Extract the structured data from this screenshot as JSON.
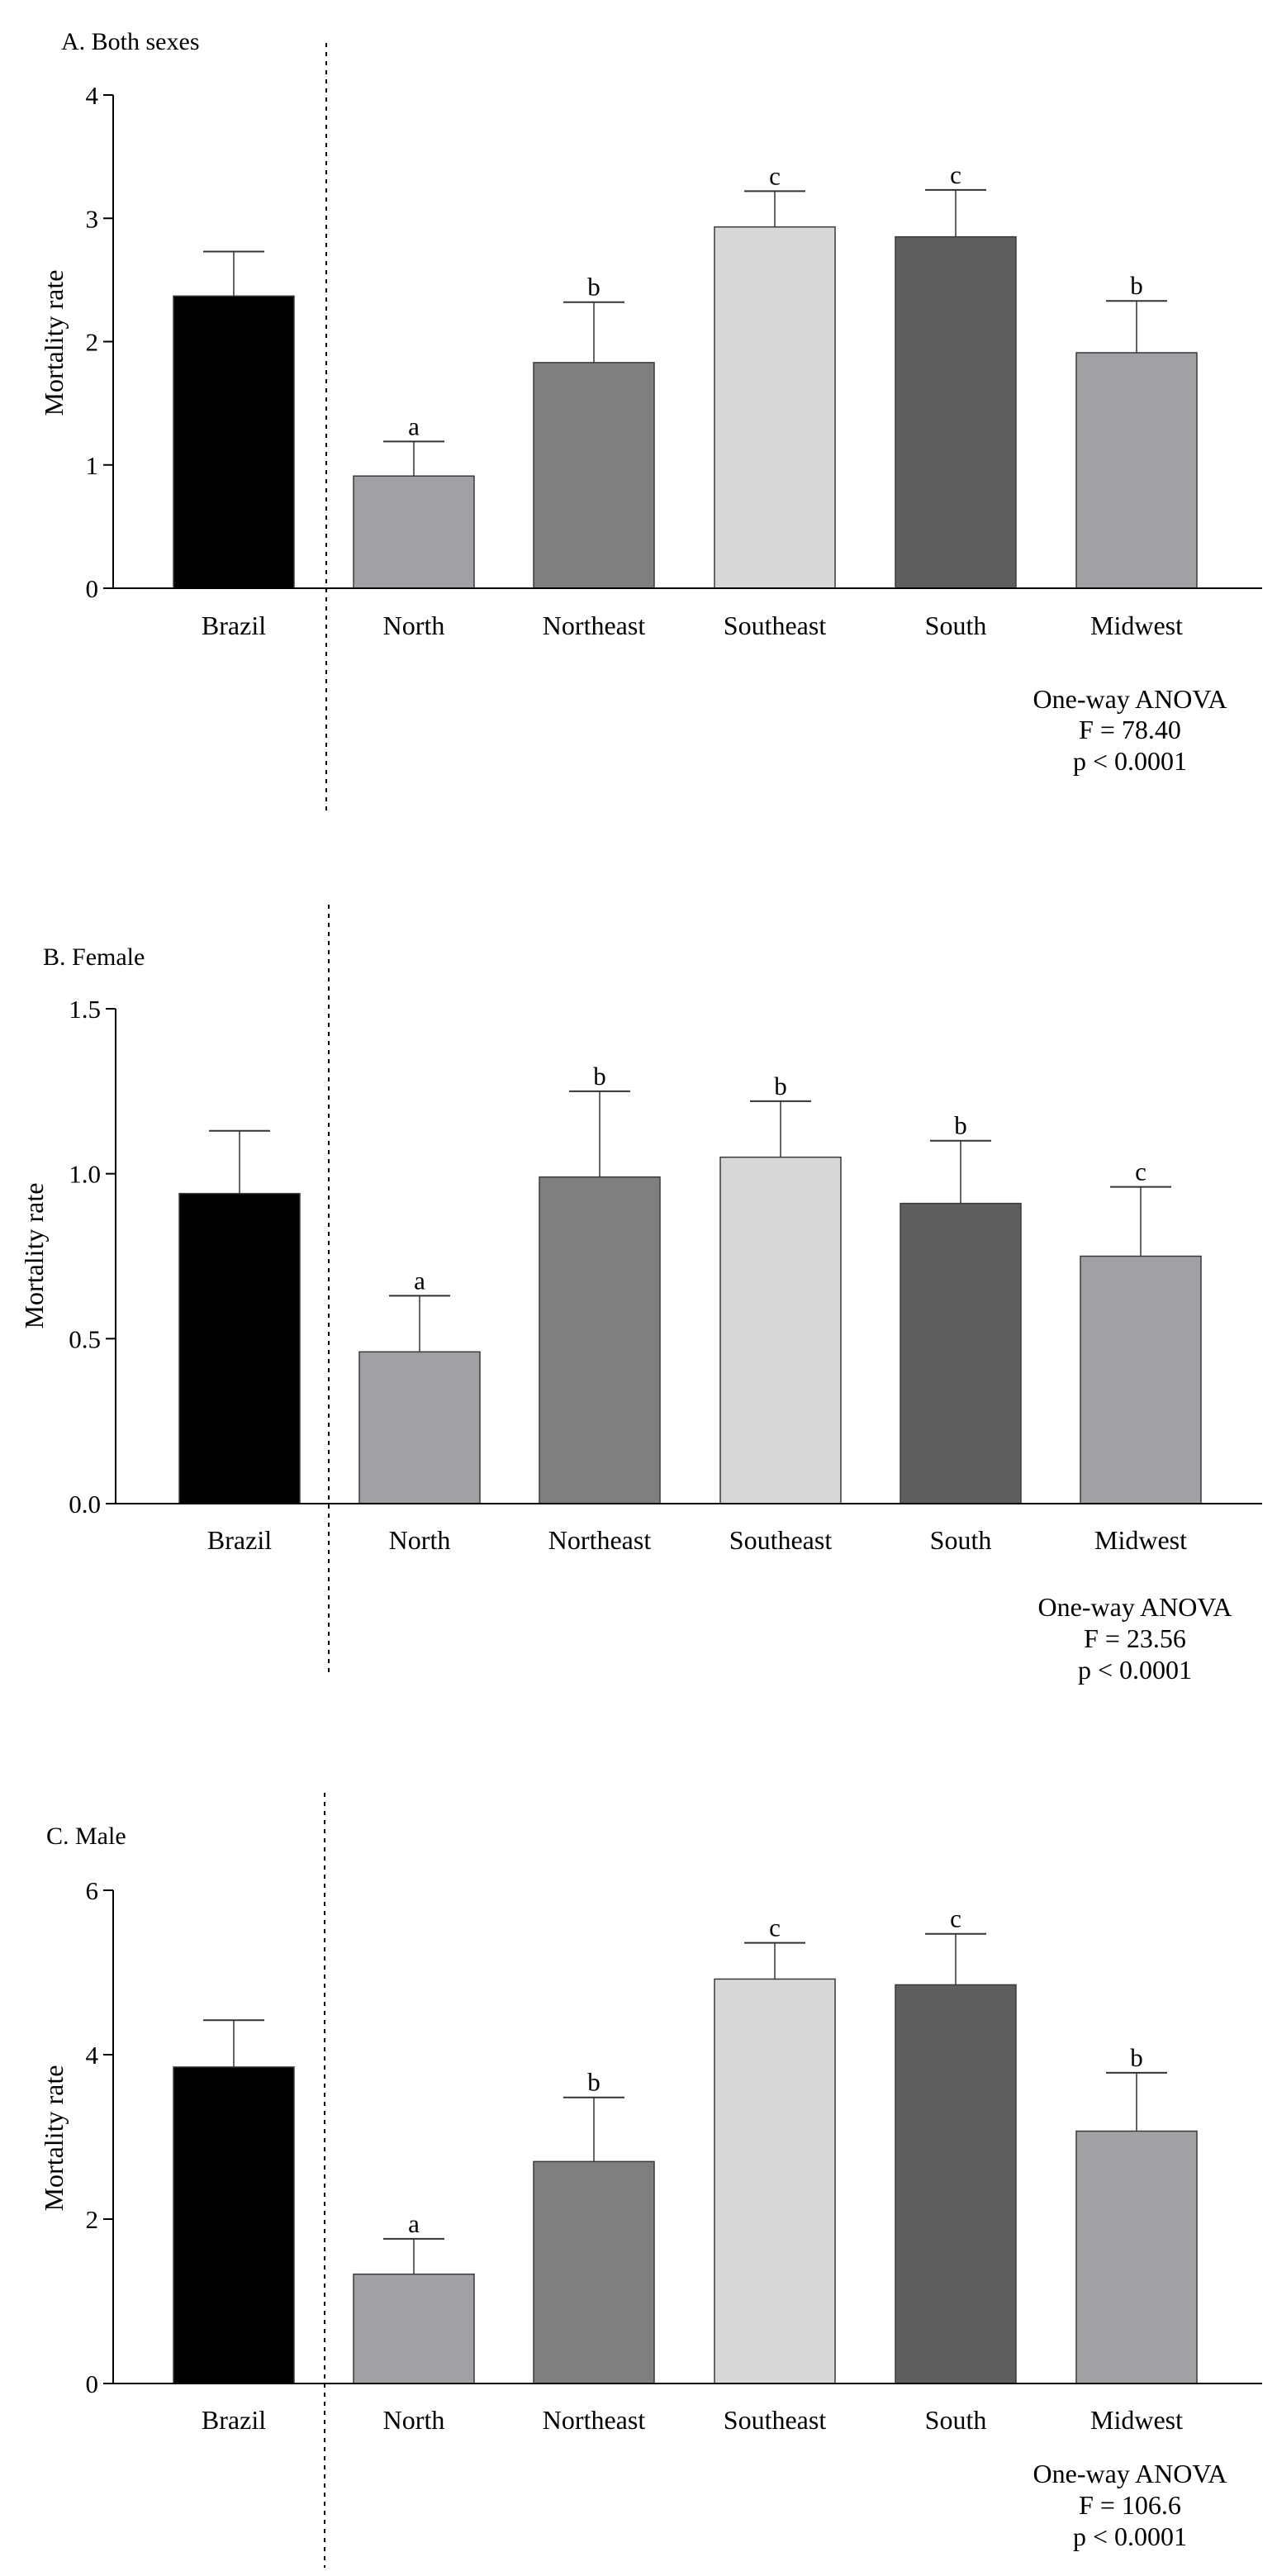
{
  "chart_data": [
    {
      "type": "bar",
      "title": "A. Both sexes",
      "xlabel": "",
      "ylabel": "Mortality rate",
      "ylim": [
        0,
        4
      ],
      "yticks": [
        0,
        1,
        2,
        3,
        4
      ],
      "ytick_labels": [
        "0",
        "1",
        "2",
        "3",
        "4"
      ],
      "categories": [
        "Brazil",
        "North",
        "Northeast",
        "Southeast",
        "South",
        "Midwest"
      ],
      "values": [
        2.37,
        0.91,
        1.83,
        2.93,
        2.85,
        1.91
      ],
      "error_upper": [
        2.73,
        1.19,
        2.32,
        3.22,
        3.23,
        2.33
      ],
      "significance": [
        "",
        "a",
        "b",
        "c",
        "c",
        "b"
      ],
      "colors": [
        "#000000",
        "#a1a1a5",
        "#7f7f7f",
        "#d8d8d8",
        "#5e5e5e",
        "#a1a1a5"
      ],
      "stats": {
        "test": "One-way ANOVA",
        "f": "F = 78.40",
        "p": "p < 0.0001"
      },
      "grid": false
    },
    {
      "type": "bar",
      "title": "B.  Female",
      "xlabel": "",
      "ylabel": "Mortality rate",
      "ylim": [
        0,
        1.5
      ],
      "yticks": [
        0,
        0.5,
        1.0,
        1.5
      ],
      "ytick_labels": [
        "0.0",
        "0.5",
        "1.0",
        "1.5"
      ],
      "categories": [
        "Brazil",
        "North",
        "Northeast",
        "Southeast",
        "South",
        "Midwest"
      ],
      "values": [
        0.94,
        0.46,
        0.99,
        1.05,
        0.91,
        0.75
      ],
      "error_upper": [
        1.13,
        0.63,
        1.25,
        1.22,
        1.1,
        0.96
      ],
      "significance": [
        "",
        "a",
        "b",
        "b",
        "b",
        "c"
      ],
      "colors": [
        "#000000",
        "#a1a1a5",
        "#7f7f7f",
        "#d8d8d8",
        "#5e5e5e",
        "#a1a1a5"
      ],
      "stats": {
        "test": "One-way ANOVA",
        "f": "F = 23.56",
        "p": "p < 0.0001"
      },
      "grid": false
    },
    {
      "type": "bar",
      "title": "C.  Male",
      "xlabel": "",
      "ylabel": "Mortality rate",
      "ylim": [
        0,
        6
      ],
      "yticks": [
        0,
        2,
        4,
        6
      ],
      "ytick_labels": [
        "0",
        "2",
        "4",
        "6"
      ],
      "categories": [
        "Brazil",
        "North",
        "Northeast",
        "Southeast",
        "South",
        "Midwest"
      ],
      "values": [
        3.85,
        1.33,
        2.7,
        4.92,
        4.85,
        3.07
      ],
      "error_upper": [
        4.42,
        1.76,
        3.48,
        5.36,
        5.47,
        3.78
      ],
      "significance": [
        "",
        "a",
        "b",
        "c",
        "c",
        "b"
      ],
      "colors": [
        "#000000",
        "#a1a1a5",
        "#7f7f7f",
        "#d8d8d8",
        "#5e5e5e",
        "#a1a1a5"
      ],
      "stats": {
        "test": "One-way ANOVA",
        "f": "F = 106.6",
        "p": "p < 0.0001"
      },
      "grid": false
    }
  ]
}
